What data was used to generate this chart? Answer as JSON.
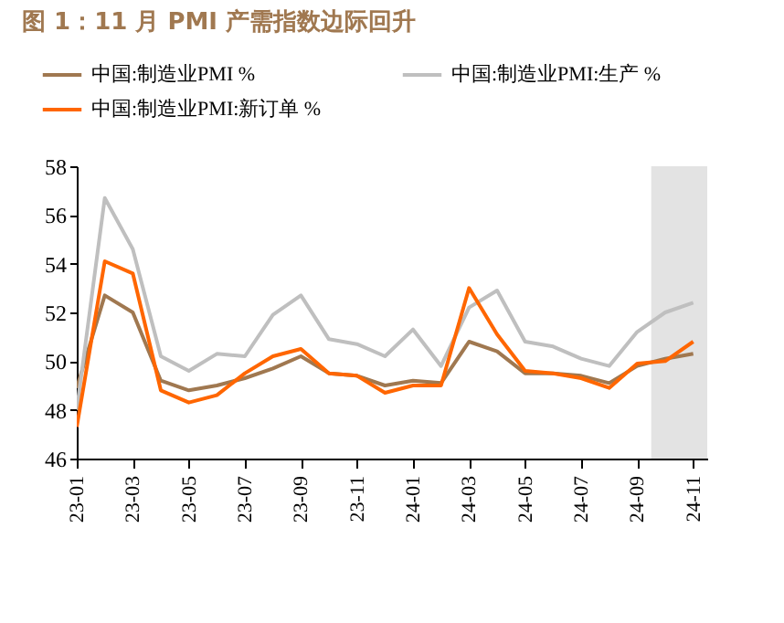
{
  "chart_data": {
    "type": "line",
    "title": "图 1：11 月 PMI 产需指数边际回升",
    "categories": [
      "23-01",
      null,
      "23-03",
      null,
      "23-05",
      null,
      "23-07",
      null,
      "23-09",
      null,
      "23-11",
      null,
      "24-01",
      null,
      "24-03",
      null,
      "24-05",
      null,
      "24-07",
      null,
      "24-09",
      null,
      "24-11"
    ],
    "series": [
      {
        "name": "中国:制造业PMI %",
        "color": "#a07850",
        "values": [
          48.9,
          52.7,
          52.0,
          49.2,
          48.8,
          49.0,
          49.3,
          49.7,
          50.2,
          49.5,
          49.4,
          49.0,
          49.2,
          49.1,
          50.8,
          50.4,
          49.5,
          49.5,
          49.4,
          49.1,
          49.8,
          50.1,
          50.3
        ]
      },
      {
        "name": "中国:制造业PMI:生产 %",
        "color": "#bfbfbf",
        "values": [
          48.0,
          56.7,
          54.6,
          50.2,
          49.6,
          50.3,
          50.2,
          51.9,
          52.7,
          50.9,
          50.7,
          50.2,
          51.3,
          49.8,
          52.2,
          52.9,
          50.8,
          50.6,
          50.1,
          49.8,
          51.2,
          52.0,
          52.4
        ]
      },
      {
        "name": "中国:制造业PMI:新订单 %",
        "color": "#ff6600",
        "values": [
          47.3,
          54.1,
          53.6,
          48.8,
          48.3,
          48.6,
          49.5,
          50.2,
          50.5,
          49.5,
          49.4,
          48.7,
          49.0,
          49.0,
          53.0,
          51.1,
          49.6,
          49.5,
          49.3,
          48.9,
          49.9,
          50.0,
          50.8
        ]
      }
    ],
    "ylim": [
      46,
      58
    ],
    "yticks": [
      46,
      48,
      50,
      52,
      54,
      56,
      58
    ],
    "bands": [
      {
        "axis": "x",
        "from": "24-09",
        "to": "24-11",
        "color": "#e3e3e3"
      }
    ],
    "legend": "top left",
    "grid": false
  }
}
